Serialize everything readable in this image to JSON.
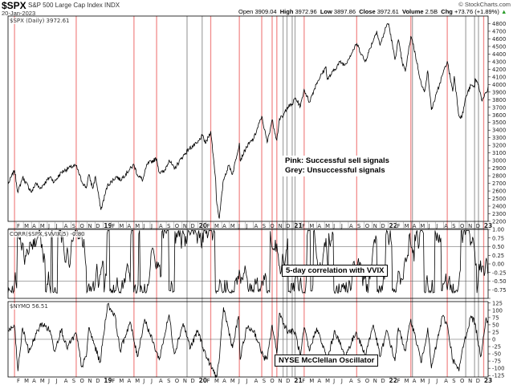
{
  "header": {
    "symbol": "$SPX",
    "name": "S&P 500 Large Cap Index INDX",
    "date": "20-Jan-2023",
    "open_label": "Open",
    "open": "3909.04",
    "high_label": "High",
    "high": "3972.96",
    "low_label": "Low",
    "low": "3897.86",
    "close_label": "Close",
    "close": "3972.61",
    "volume_label": "Volume",
    "volume": "2.5B",
    "chg_label": "Chg",
    "chg": "+73.76 (+1.89%)",
    "chg_arrow": "▲",
    "brand": "© StockCharts.com"
  },
  "panels": {
    "price_legend": "$SPX (Daily) 3972.61",
    "corr_legend": "CORR($SPX,$VVIX,5) -0.80",
    "nymo_legend": "$NYMO 56.51"
  },
  "annotations": {
    "pink_note": "Pink: Successful sell signals",
    "grey_note": "Grey: Unsuccessful signals",
    "corr_label": "5-day correlation with VVIX",
    "nymo_label": "NYSE McClellan Oscillator"
  },
  "colors": {
    "pink_signal": "#f08080",
    "grey_signal": "#a0a0a0",
    "line": "#000000",
    "grid": "#cccccc"
  },
  "chart_data": {
    "type": "line",
    "x_range": [
      "2018-01-01",
      "2023-01-20"
    ],
    "x_ticks": [
      {
        "label": "F",
        "date": "2018-02-01"
      },
      {
        "label": "M",
        "date": "2018-03-01"
      },
      {
        "label": "A",
        "date": "2018-04-01"
      },
      {
        "label": "M",
        "date": "2018-05-01"
      },
      {
        "label": "J",
        "date": "2018-06-01"
      },
      {
        "label": "J",
        "date": "2018-07-01"
      },
      {
        "label": "A",
        "date": "2018-08-01"
      },
      {
        "label": "S",
        "date": "2018-09-01"
      },
      {
        "label": "O",
        "date": "2018-10-01"
      },
      {
        "label": "N",
        "date": "2018-11-01"
      },
      {
        "label": "D",
        "date": "2018-12-01"
      },
      {
        "label": "19",
        "date": "2019-01-01",
        "bold": true
      },
      {
        "label": "F",
        "date": "2019-02-01"
      },
      {
        "label": "M",
        "date": "2019-03-01"
      },
      {
        "label": "A",
        "date": "2019-04-01"
      },
      {
        "label": "M",
        "date": "2019-05-01"
      },
      {
        "label": "J",
        "date": "2019-06-01"
      },
      {
        "label": "J",
        "date": "2019-07-01"
      },
      {
        "label": "A",
        "date": "2019-08-01"
      },
      {
        "label": "S",
        "date": "2019-09-01"
      },
      {
        "label": "O",
        "date": "2019-10-01"
      },
      {
        "label": "N",
        "date": "2019-11-01"
      },
      {
        "label": "D",
        "date": "2019-12-01"
      },
      {
        "label": "20",
        "date": "2020-01-01",
        "bold": true
      },
      {
        "label": "F",
        "date": "2020-02-01"
      },
      {
        "label": "M",
        "date": "2020-03-01"
      },
      {
        "label": "A",
        "date": "2020-04-01"
      },
      {
        "label": "M",
        "date": "2020-05-01"
      },
      {
        "label": "J",
        "date": "2020-06-01"
      },
      {
        "label": "J",
        "date": "2020-07-01"
      },
      {
        "label": "A",
        "date": "2020-08-01"
      },
      {
        "label": "S",
        "date": "2020-09-01"
      },
      {
        "label": "O",
        "date": "2020-10-01"
      },
      {
        "label": "N",
        "date": "2020-11-01"
      },
      {
        "label": "D",
        "date": "2020-12-01"
      },
      {
        "label": "21",
        "date": "2021-01-01",
        "bold": true
      },
      {
        "label": "F",
        "date": "2021-02-01"
      },
      {
        "label": "M",
        "date": "2021-03-01"
      },
      {
        "label": "A",
        "date": "2021-04-01"
      },
      {
        "label": "M",
        "date": "2021-05-01"
      },
      {
        "label": "J",
        "date": "2021-06-01"
      },
      {
        "label": "J",
        "date": "2021-07-01"
      },
      {
        "label": "A",
        "date": "2021-08-01"
      },
      {
        "label": "S",
        "date": "2021-09-01"
      },
      {
        "label": "O",
        "date": "2021-10-01"
      },
      {
        "label": "N",
        "date": "2021-11-01"
      },
      {
        "label": "D",
        "date": "2021-12-01"
      },
      {
        "label": "22",
        "date": "2022-01-01",
        "bold": true
      },
      {
        "label": "F",
        "date": "2022-02-01"
      },
      {
        "label": "M",
        "date": "2022-03-01"
      },
      {
        "label": "A",
        "date": "2022-04-01"
      },
      {
        "label": "M",
        "date": "2022-05-01"
      },
      {
        "label": "J",
        "date": "2022-06-01"
      },
      {
        "label": "J",
        "date": "2022-07-01"
      },
      {
        "label": "A",
        "date": "2022-08-01"
      },
      {
        "label": "S",
        "date": "2022-09-01"
      },
      {
        "label": "O",
        "date": "2022-10-01"
      },
      {
        "label": "N",
        "date": "2022-11-01"
      },
      {
        "label": "D",
        "date": "2022-12-01"
      },
      {
        "label": "23",
        "date": "2023-01-01",
        "bold": true
      }
    ],
    "signals": {
      "pink": [
        "2018-01-26",
        "2018-09-20",
        "2019-04-30",
        "2019-07-26",
        "2020-02-19",
        "2020-06-08",
        "2020-09-02",
        "2020-10-12",
        "2020-10-30",
        "2021-02-12",
        "2021-09-02",
        "2022-03-29",
        "2022-08-16",
        "2023-01-03"
      ],
      "grey": [
        "2019-11-20",
        "2020-01-17",
        "2020-11-23",
        "2020-12-08",
        "2020-12-28",
        "2021-01-08",
        "2022-04-04",
        "2022-10-26",
        "2022-11-29",
        "2022-12-14"
      ]
    },
    "panels": [
      {
        "name": "price",
        "series_name": "$SPX",
        "ylim": [
          2200,
          4900
        ],
        "yticks": [
          2200,
          2300,
          2400,
          2500,
          2600,
          2700,
          2800,
          2900,
          3000,
          3100,
          3200,
          3300,
          3400,
          3500,
          3600,
          3700,
          3800,
          3900,
          4000,
          4100,
          4200,
          4300,
          4400,
          4500,
          4600,
          4700,
          4800
        ],
        "points": [
          [
            "2018-01-02",
            2695
          ],
          [
            "2018-01-26",
            2873
          ],
          [
            "2018-02-08",
            2581
          ],
          [
            "2018-02-26",
            2780
          ],
          [
            "2018-04-02",
            2582
          ],
          [
            "2018-04-18",
            2708
          ],
          [
            "2018-05-03",
            2629
          ],
          [
            "2018-06-12",
            2787
          ],
          [
            "2018-06-28",
            2716
          ],
          [
            "2018-07-25",
            2846
          ],
          [
            "2018-08-29",
            2914
          ],
          [
            "2018-09-20",
            2931
          ],
          [
            "2018-10-11",
            2728
          ],
          [
            "2018-10-29",
            2641
          ],
          [
            "2018-11-07",
            2814
          ],
          [
            "2018-11-23",
            2633
          ],
          [
            "2018-12-03",
            2790
          ],
          [
            "2018-12-24",
            2351
          ],
          [
            "2019-01-18",
            2670
          ],
          [
            "2019-02-22",
            2792
          ],
          [
            "2019-03-08",
            2743
          ],
          [
            "2019-04-30",
            2946
          ],
          [
            "2019-05-13",
            2812
          ],
          [
            "2019-06-03",
            2744
          ],
          [
            "2019-06-20",
            2954
          ],
          [
            "2019-07-26",
            3026
          ],
          [
            "2019-08-05",
            2845
          ],
          [
            "2019-08-23",
            2847
          ],
          [
            "2019-09-12",
            3009
          ],
          [
            "2019-10-02",
            2888
          ],
          [
            "2019-10-31",
            3038
          ],
          [
            "2019-11-27",
            3154
          ],
          [
            "2019-12-31",
            3231
          ],
          [
            "2020-01-17",
            3330
          ],
          [
            "2020-01-31",
            3226
          ],
          [
            "2020-02-19",
            3386
          ],
          [
            "2020-03-09",
            2747
          ],
          [
            "2020-03-12",
            2481
          ],
          [
            "2020-03-23",
            2237
          ],
          [
            "2020-04-08",
            2750
          ],
          [
            "2020-04-29",
            2940
          ],
          [
            "2020-05-13",
            2820
          ],
          [
            "2020-06-08",
            3232
          ],
          [
            "2020-06-11",
            3002
          ],
          [
            "2020-07-06",
            3180
          ],
          [
            "2020-08-03",
            3295
          ],
          [
            "2020-09-02",
            3580
          ],
          [
            "2020-09-23",
            3237
          ],
          [
            "2020-10-12",
            3535
          ],
          [
            "2020-10-30",
            3270
          ],
          [
            "2020-11-09",
            3550
          ],
          [
            "2020-11-23",
            3577
          ],
          [
            "2020-12-08",
            3702
          ],
          [
            "2020-12-28",
            3735
          ],
          [
            "2021-01-08",
            3824
          ],
          [
            "2021-01-29",
            3714
          ],
          [
            "2021-02-12",
            3934
          ],
          [
            "2021-03-04",
            3768
          ],
          [
            "2021-04-01",
            4020
          ],
          [
            "2021-05-07",
            4232
          ],
          [
            "2021-05-12",
            4063
          ],
          [
            "2021-06-30",
            4297
          ],
          [
            "2021-07-19",
            4258
          ],
          [
            "2021-08-31",
            4522
          ],
          [
            "2021-09-02",
            4537
          ],
          [
            "2021-10-04",
            4300
          ],
          [
            "2021-11-18",
            4704
          ],
          [
            "2021-12-01",
            4513
          ],
          [
            "2021-12-27",
            4791
          ],
          [
            "2022-01-03",
            4796
          ],
          [
            "2022-01-27",
            4326
          ],
          [
            "2022-02-09",
            4587
          ],
          [
            "2022-02-24",
            4288
          ],
          [
            "2022-03-08",
            4170
          ],
          [
            "2022-03-29",
            4631
          ],
          [
            "2022-04-04",
            4582
          ],
          [
            "2022-05-09",
            3991
          ],
          [
            "2022-05-20",
            3901
          ],
          [
            "2022-06-02",
            4176
          ],
          [
            "2022-06-16",
            3666
          ],
          [
            "2022-07-08",
            3899
          ],
          [
            "2022-07-29",
            4130
          ],
          [
            "2022-08-16",
            4305
          ],
          [
            "2022-09-06",
            3909
          ],
          [
            "2022-09-12",
            4110
          ],
          [
            "2022-09-30",
            3585
          ],
          [
            "2022-10-12",
            3577
          ],
          [
            "2022-10-26",
            3830
          ],
          [
            "2022-11-15",
            3991
          ],
          [
            "2022-11-29",
            3958
          ],
          [
            "2022-12-01",
            4076
          ],
          [
            "2022-12-14",
            3996
          ],
          [
            "2022-12-28",
            3783
          ],
          [
            "2023-01-03",
            3824
          ],
          [
            "2023-01-18",
            3928
          ],
          [
            "2023-01-20",
            3973
          ]
        ]
      },
      {
        "name": "corr",
        "series_name": "CORR($SPX,$VVIX,5)",
        "ylim": [
          -1.0,
          1.0
        ],
        "yticks": [
          -1.0,
          -0.75,
          -0.5,
          -0.25,
          0.0,
          0.25,
          0.5,
          0.75,
          1.0
        ],
        "ytick_labels": [
          "",
          "-0.75",
          "-0.50",
          "-0.25",
          "0.00",
          "0.25",
          "0.50",
          "0.75",
          "1.00"
        ],
        "hlines": [
          0.5,
          -0.5
        ],
        "last": -0.8,
        "oscillation": {
          "typical_low": -0.85,
          "typical_high": 0.45,
          "peak_high": 0.97
        }
      },
      {
        "name": "nymo",
        "series_name": "$NYMO",
        "ylim": [
          -130,
          130
        ],
        "yticks": [
          -125,
          -100,
          -75,
          -50,
          -25,
          0,
          25,
          50,
          75,
          100,
          125
        ],
        "hlines": [
          0
        ],
        "last": 56.51,
        "points": [
          [
            "2018-01-02",
            30
          ],
          [
            "2018-01-26",
            45
          ],
          [
            "2018-02-08",
            -110
          ],
          [
            "2018-02-26",
            40
          ],
          [
            "2018-03-22",
            -45
          ],
          [
            "2018-04-20",
            20
          ],
          [
            "2018-05-10",
            55
          ],
          [
            "2018-06-12",
            30
          ],
          [
            "2018-06-28",
            -40
          ],
          [
            "2018-07-25",
            35
          ],
          [
            "2018-08-15",
            -30
          ],
          [
            "2018-09-20",
            20
          ],
          [
            "2018-10-11",
            -95
          ],
          [
            "2018-10-29",
            -60
          ],
          [
            "2018-11-07",
            40
          ],
          [
            "2018-12-21",
            -80
          ],
          [
            "2019-01-18",
            120
          ],
          [
            "2019-02-15",
            85
          ],
          [
            "2019-03-08",
            -40
          ],
          [
            "2019-04-15",
            60
          ],
          [
            "2019-05-13",
            -60
          ],
          [
            "2019-06-10",
            70
          ],
          [
            "2019-08-05",
            -70
          ],
          [
            "2019-09-12",
            85
          ],
          [
            "2019-10-02",
            -50
          ],
          [
            "2019-11-05",
            55
          ],
          [
            "2019-12-03",
            -30
          ],
          [
            "2019-12-31",
            30
          ],
          [
            "2020-01-31",
            -55
          ],
          [
            "2020-02-24",
            -100
          ],
          [
            "2020-03-12",
            -130
          ],
          [
            "2020-03-24",
            -60
          ],
          [
            "2020-04-08",
            110
          ],
          [
            "2020-05-13",
            -30
          ],
          [
            "2020-06-05",
            80
          ],
          [
            "2020-06-11",
            -70
          ],
          [
            "2020-07-06",
            40
          ],
          [
            "2020-08-03",
            30
          ],
          [
            "2020-09-08",
            -60
          ],
          [
            "2020-09-23",
            -70
          ],
          [
            "2020-10-12",
            50
          ],
          [
            "2020-10-30",
            -50
          ],
          [
            "2020-11-09",
            90
          ],
          [
            "2020-12-08",
            30
          ],
          [
            "2021-01-08",
            25
          ],
          [
            "2021-01-29",
            -60
          ],
          [
            "2021-02-12",
            40
          ],
          [
            "2021-03-04",
            -40
          ],
          [
            "2021-04-01",
            40
          ],
          [
            "2021-05-12",
            -70
          ],
          [
            "2021-06-10",
            30
          ],
          [
            "2021-07-19",
            -60
          ],
          [
            "2021-08-31",
            25
          ],
          [
            "2021-10-04",
            -55
          ],
          [
            "2021-11-05",
            50
          ],
          [
            "2021-12-01",
            -60
          ],
          [
            "2021-12-27",
            30
          ],
          [
            "2022-01-27",
            -75
          ],
          [
            "2022-02-09",
            40
          ],
          [
            "2022-03-08",
            -40
          ],
          [
            "2022-03-29",
            70
          ],
          [
            "2022-05-09",
            -80
          ],
          [
            "2022-06-02",
            40
          ],
          [
            "2022-06-16",
            -100
          ],
          [
            "2022-07-29",
            80
          ],
          [
            "2022-08-16",
            50
          ],
          [
            "2022-09-06",
            -70
          ],
          [
            "2022-09-30",
            -110
          ],
          [
            "2022-10-12",
            -40
          ],
          [
            "2022-11-15",
            80
          ],
          [
            "2022-12-01",
            55
          ],
          [
            "2022-12-22",
            -60
          ],
          [
            "2023-01-12",
            75
          ],
          [
            "2023-01-20",
            57
          ]
        ]
      }
    ]
  }
}
